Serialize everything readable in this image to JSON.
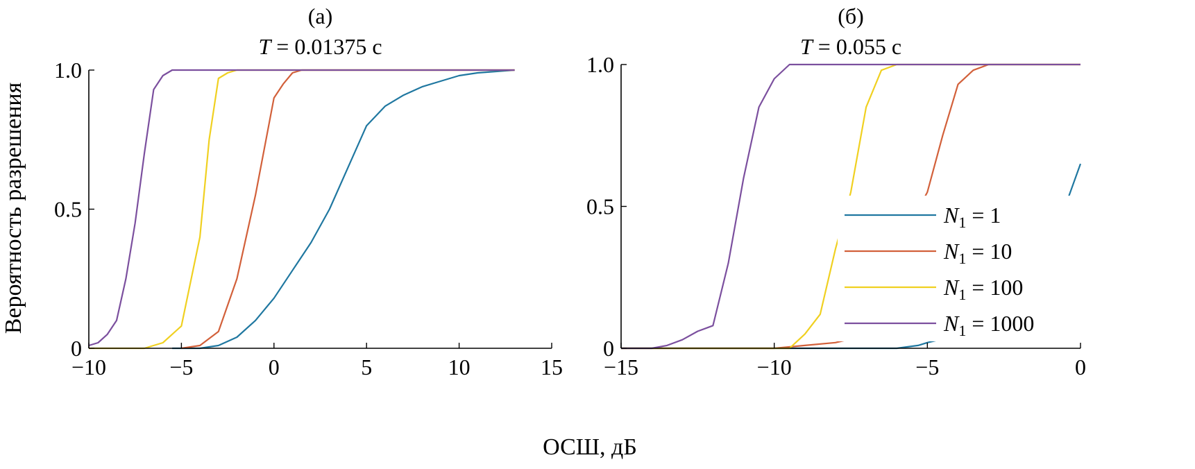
{
  "figure": {
    "xlabel": "ОСШ, дБ",
    "ylabel": "Вероятность разрешения"
  },
  "chart_data": [
    {
      "type": "line",
      "panel": "(a)",
      "title": "T = 0.01375 с",
      "title_var": "T",
      "title_rest": " = 0.01375 с",
      "xlim": [
        -10,
        15
      ],
      "ylim": [
        0,
        1
      ],
      "xticks": [
        -10,
        -5,
        0,
        5,
        10,
        15
      ],
      "xtick_labels": [
        "−10",
        "−5",
        "0",
        "5",
        "10",
        "15"
      ],
      "yticks": [
        0,
        0.5,
        1.0
      ],
      "ytick_labels": [
        "0",
        "0.5",
        "1.0"
      ],
      "grid": false,
      "series": [
        {
          "name": "N1 = 1",
          "color": "#1f77a0",
          "x": [
            -5.5,
            -4,
            -3,
            -2,
            -1,
            0,
            1,
            2,
            3,
            4,
            5,
            6,
            7,
            8,
            9,
            10,
            11,
            12,
            13
          ],
          "y": [
            0,
            0,
            0.01,
            0.04,
            0.1,
            0.18,
            0.28,
            0.38,
            0.5,
            0.65,
            0.8,
            0.87,
            0.91,
            0.94,
            0.96,
            0.98,
            0.99,
            0.995,
            1.0
          ]
        },
        {
          "name": "N1 = 10",
          "color": "#d2603a",
          "x": [
            -5,
            -4,
            -3,
            -2,
            -1,
            0,
            0.5,
            1,
            1.5,
            2,
            13
          ],
          "y": [
            0,
            0.01,
            0.06,
            0.25,
            0.55,
            0.9,
            0.95,
            0.99,
            1.0,
            1.0,
            1.0
          ]
        },
        {
          "name": "N1 = 100",
          "color": "#f0d020",
          "x": [
            -10,
            -8,
            -7,
            -6,
            -5,
            -4,
            -3.5,
            -3,
            -2.5,
            -2,
            13
          ],
          "y": [
            0,
            0,
            0,
            0.02,
            0.08,
            0.4,
            0.75,
            0.97,
            0.99,
            1.0,
            1.0
          ]
        },
        {
          "name": "N1 = 1000",
          "color": "#7b4f9e",
          "x": [
            -10,
            -9.5,
            -9,
            -8.5,
            -8,
            -7.5,
            -7,
            -6.5,
            -6,
            -5.5,
            -5,
            13
          ],
          "y": [
            0.01,
            0.02,
            0.05,
            0.1,
            0.25,
            0.45,
            0.7,
            0.93,
            0.98,
            1.0,
            1.0,
            1.0
          ]
        }
      ]
    },
    {
      "type": "line",
      "panel": "(б)",
      "title": "T = 0.055 с",
      "title_var": "T",
      "title_rest": " = 0.055 с",
      "xlim": [
        -15,
        0
      ],
      "ylim": [
        0,
        1
      ],
      "xticks": [
        -15,
        -10,
        -5,
        0
      ],
      "xtick_labels": [
        "−15",
        "−10",
        "−5",
        "0"
      ],
      "yticks": [
        0,
        0.5,
        1.0
      ],
      "ytick_labels": [
        "0",
        "0.5",
        "1.0"
      ],
      "grid": false,
      "legend": "right",
      "series": [
        {
          "name": "N1 = 1",
          "color": "#1f77a0",
          "x": [
            -15,
            -8,
            -6,
            -5.3,
            -5,
            -4.6,
            -0.9,
            -0.5,
            0
          ],
          "y": [
            0,
            0,
            0,
            0.01,
            0.02,
            0.03,
            0.46,
            0.5,
            0.65
          ]
        },
        {
          "name": "N1 = 10",
          "color": "#d2603a",
          "x": [
            -15,
            -13.5,
            -10,
            -9,
            -8,
            -7.6,
            -5,
            -4.5,
            -4,
            -3.5,
            -3,
            -2.5,
            0
          ],
          "y": [
            0,
            0,
            0,
            0.01,
            0.02,
            0.03,
            0.55,
            0.75,
            0.93,
            0.98,
            1.0,
            1.0,
            1.0
          ]
        },
        {
          "name": "N1 = 100",
          "color": "#f0d020",
          "x": [
            -15,
            -9.5,
            -9,
            -8.5,
            -8,
            -7.5,
            -7,
            -6.5,
            -6,
            0
          ],
          "y": [
            0,
            0,
            0.05,
            0.12,
            0.35,
            0.55,
            0.85,
            0.98,
            1.0,
            1.0
          ]
        },
        {
          "name": "N1 = 1000",
          "color": "#7b4f9e",
          "x": [
            -15,
            -14,
            -13.5,
            -13,
            -12.5,
            -12,
            -11.5,
            -11,
            -10.5,
            -10,
            -9.5,
            0
          ],
          "y": [
            0,
            0,
            0.01,
            0.03,
            0.06,
            0.08,
            0.3,
            0.6,
            0.85,
            0.95,
            1.0,
            1.0
          ]
        }
      ],
      "legend_entries": [
        {
          "var": "N",
          "sub": "1",
          "rest": " = 1"
        },
        {
          "var": "N",
          "sub": "1",
          "rest": " = 10"
        },
        {
          "var": "N",
          "sub": "1",
          "rest": " = 100"
        },
        {
          "var": "N",
          "sub": "1",
          "rest": " = 1000"
        }
      ]
    }
  ]
}
